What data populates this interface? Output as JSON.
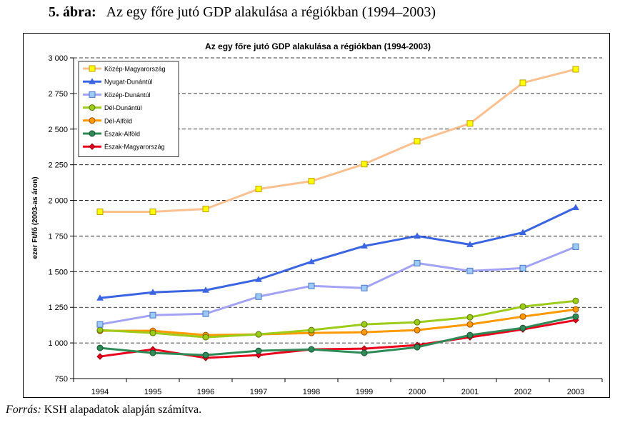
{
  "figure": {
    "number": "5. ábra:",
    "title": "Az egy főre jutó GDP alakulása a régiókban (1994–2003)"
  },
  "source": {
    "label": "Forrás:",
    "text": "KSH alapadatok alapján számítva."
  },
  "chart_data": {
    "type": "line",
    "title": "Az egy főre jutó GDP alakulása a régiókban (1994-2003)",
    "ylabel": "ezer Ft/fő (2003-as áron)",
    "xlabel": "",
    "categories": [
      "1994",
      "1995",
      "1996",
      "1997",
      "1998",
      "1999",
      "2000",
      "2001",
      "2002",
      "2003"
    ],
    "ylim": [
      750,
      3000
    ],
    "yticks": [
      750,
      1000,
      1250,
      1500,
      1750,
      2000,
      2250,
      2500,
      2750,
      3000
    ],
    "ytick_labels": [
      "750",
      "1 000",
      "1 250",
      "1 500",
      "1 750",
      "2 000",
      "2 250",
      "2 500",
      "2 750",
      "3 000"
    ],
    "grid": "horizontal dashed",
    "legend_position": "top-left",
    "series": [
      {
        "name": "Közép-Magyarország",
        "color": "#fac090",
        "marker": "square",
        "marker_fill": "#ffff00",
        "marker_stroke": "#c0a000",
        "values": [
          1920,
          1920,
          1940,
          2080,
          2135,
          2255,
          2415,
          2540,
          2825,
          2920
        ]
      },
      {
        "name": "Nyugat-Dunántúl",
        "color": "#3b64e0",
        "marker": "triangle",
        "marker_fill": "#3b64e0",
        "marker_stroke": "#3b64e0",
        "values": [
          1315,
          1355,
          1370,
          1445,
          1570,
          1680,
          1750,
          1690,
          1775,
          1950
        ]
      },
      {
        "name": "Közép-Dunántúl",
        "color": "#a3a3f5",
        "marker": "square",
        "marker_fill": "#9ccaf5",
        "marker_stroke": "#4a78c8",
        "values": [
          1130,
          1195,
          1205,
          1325,
          1400,
          1385,
          1560,
          1505,
          1525,
          1675
        ]
      },
      {
        "name": "Dél-Dunántúl",
        "color": "#9ccb19",
        "marker": "circle",
        "marker_fill": "#9ccb19",
        "marker_stroke": "#5a7a00",
        "values": [
          1090,
          1070,
          1040,
          1060,
          1090,
          1130,
          1145,
          1180,
          1255,
          1295
        ]
      },
      {
        "name": "Dél-Alföld",
        "color": "#ff9900",
        "marker": "circle",
        "marker_fill": "#ff9900",
        "marker_stroke": "#a05000",
        "values": [
          1085,
          1085,
          1055,
          1060,
          1070,
          1075,
          1090,
          1130,
          1185,
          1235
        ]
      },
      {
        "name": "Észak-Alföld",
        "color": "#2e8b57",
        "marker": "circle",
        "marker_fill": "#2e8b57",
        "marker_stroke": "#1a5030",
        "values": [
          965,
          930,
          915,
          945,
          955,
          930,
          970,
          1055,
          1105,
          1185
        ]
      },
      {
        "name": "Észak-Magyarország",
        "color": "#e8001c",
        "marker": "diamond",
        "marker_fill": "#e8001c",
        "marker_stroke": "#900010",
        "values": [
          905,
          955,
          895,
          915,
          955,
          960,
          985,
          1040,
          1095,
          1160
        ]
      }
    ]
  }
}
